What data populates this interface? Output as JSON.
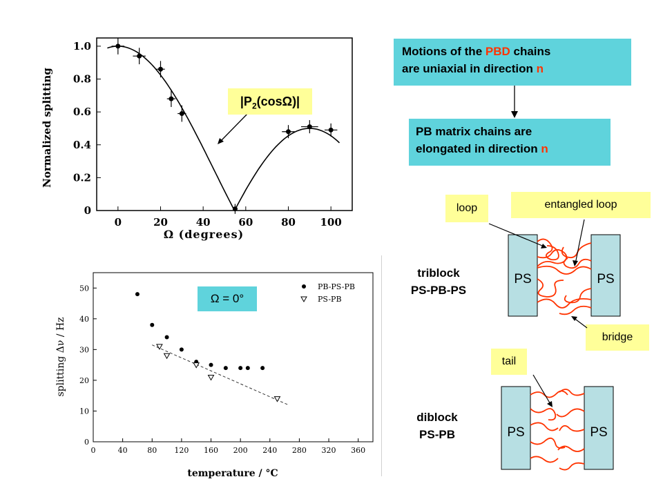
{
  "chart_data": [
    {
      "type": "scatter",
      "xlabel": "Ω (degrees)",
      "ylabel": "Normalized splitting",
      "xlim": [
        -10,
        110
      ],
      "ylim": [
        0,
        1.05
      ],
      "xticks": [
        "0",
        "20",
        "40",
        "60",
        "80",
        "100"
      ],
      "yticks": [
        "0",
        "0.2",
        "0.4",
        "0.6",
        "0.8",
        "1.0"
      ],
      "series": [
        {
          "x": [
            0,
            10,
            20,
            25,
            30,
            55,
            80,
            90,
            100
          ],
          "y": [
            1.0,
            0.94,
            0.86,
            0.68,
            0.59,
            0.01,
            0.48,
            0.51,
            0.49
          ],
          "xerr": [
            3,
            3,
            2,
            2,
            2,
            1,
            3,
            4,
            3
          ],
          "yerr": [
            0.05,
            0.05,
            0.05,
            0.05,
            0.05,
            0.03,
            0.04,
            0.04,
            0.04
          ]
        }
      ],
      "fit_curve": "|P2(cos Ω)|",
      "annotation": {
        "text_main": "|P",
        "sub": "2",
        "text_end": "(cosΩ)|"
      }
    },
    {
      "type": "scatter",
      "xlabel": "temperature / °C",
      "ylabel": "splitting Δν / Hz",
      "xlim": [
        0,
        380
      ],
      "ylim": [
        0,
        55
      ],
      "xticks": [
        "0",
        "40",
        "80",
        "120",
        "160",
        "200",
        "240",
        "280",
        "320",
        "360"
      ],
      "yticks": [
        "0",
        "10",
        "20",
        "30",
        "40",
        "50"
      ],
      "legend": [
        "PB-PS-PB",
        "PS-PB"
      ],
      "legend_position": "top-right",
      "series": [
        {
          "name": "PB-PS-PB",
          "marker": "filled-circle",
          "x": [
            60,
            80,
            100,
            120,
            140,
            160,
            180,
            200,
            210,
            230
          ],
          "y": [
            48,
            38,
            34,
            30,
            26,
            25,
            24,
            24,
            24,
            24
          ]
        },
        {
          "name": "PS-PB",
          "marker": "open-triangle-down",
          "x": [
            90,
            100,
            140,
            160,
            250
          ],
          "y": [
            31,
            28,
            25,
            21,
            14
          ]
        }
      ],
      "trend_line": {
        "style": "dashed",
        "x": [
          80,
          265
        ],
        "y": [
          31.5,
          12
        ]
      },
      "annotation": "Ω = 0°"
    }
  ],
  "boxes": {
    "motions": {
      "l1_a": "Motions of the ",
      "l1_b": "PBD",
      "l1_c": " chains",
      "l2_a": "are uniaxial in direction ",
      "l2_b": "n"
    },
    "pb": {
      "l1": "PB matrix chains are",
      "l2_a": "elongated in direction ",
      "l2_b": "n"
    },
    "loop": "loop",
    "entangled": "entangled loop",
    "bridge": "bridge",
    "tail": "tail",
    "omega0": "Ω = 0°"
  },
  "diagram": {
    "triblock": {
      "l1": "triblock",
      "l2": "PS-PB-PS"
    },
    "diblock": {
      "l1": "diblock",
      "l2": "PS-PB"
    },
    "ps": "PS"
  },
  "colors": {
    "cyan": "#5fd3dc",
    "yellow": "#ffff99",
    "chain": "#ff3300",
    "ps_block": "#b7dfe3"
  }
}
